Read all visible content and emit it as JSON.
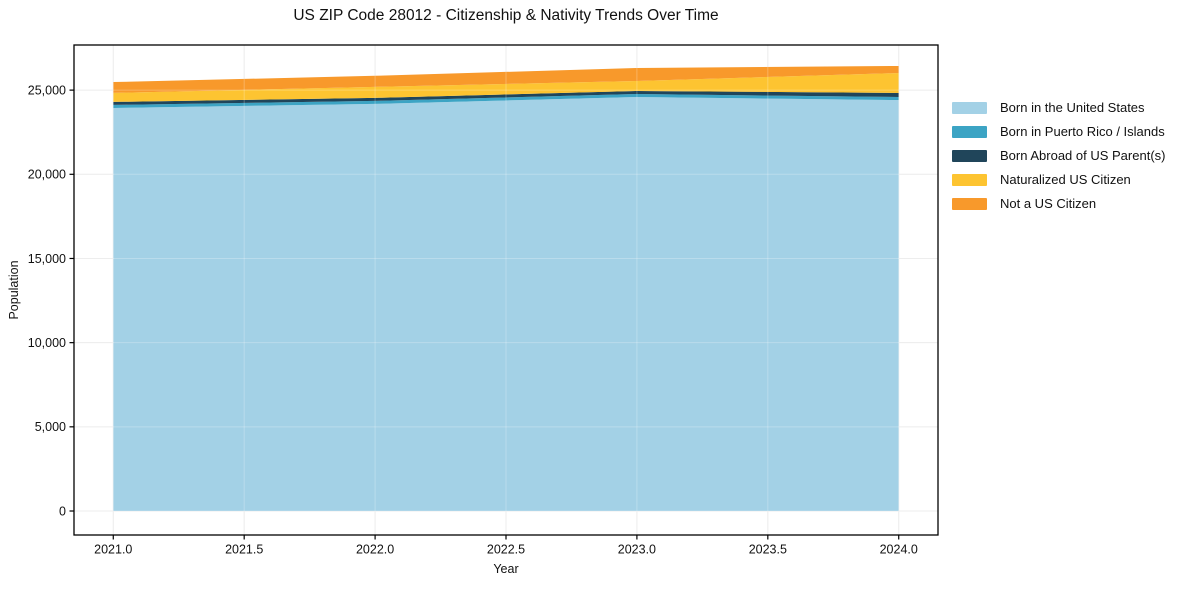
{
  "figure": {
    "background": "#ffffff",
    "text_color": "#111111"
  },
  "chart_data": {
    "type": "area",
    "stacked": true,
    "title": "US ZIP Code 28012 - Citizenship & Nativity Trends Over Time",
    "xlabel": "Year",
    "ylabel": "Population",
    "x": [
      2021,
      2022,
      2023,
      2024
    ],
    "series": [
      {
        "name": "Born in the United States",
        "color": "#a3d1e6",
        "values": [
          23940,
          24180,
          24590,
          24410
        ]
      },
      {
        "name": "Born in Puerto Rico / Islands",
        "color": "#3ca4c4",
        "values": [
          180,
          180,
          180,
          180
        ]
      },
      {
        "name": "Born Abroad of US Parent(s)",
        "color": "#20455a",
        "values": [
          180,
          180,
          180,
          240
        ]
      },
      {
        "name": "Naturalized US Citizen",
        "color": "#fdc431",
        "values": [
          535,
          655,
          595,
          1185
        ]
      },
      {
        "name": "Not a US Citizen",
        "color": "#f8992b",
        "values": [
          645,
          655,
          770,
          420
        ]
      }
    ],
    "totals": [
      25480,
      25850,
      26315,
      26435
    ],
    "xlim": [
      2020.85,
      2024.15
    ],
    "ylim": [
      -1425,
      27680
    ],
    "xticks": {
      "values": [
        2021.0,
        2021.5,
        2022.0,
        2022.5,
        2023.0,
        2023.5,
        2024.0
      ],
      "labels": [
        "2021.0",
        "2021.5",
        "2022.0",
        "2022.5",
        "2023.0",
        "2023.5",
        "2024.0"
      ]
    },
    "yticks": {
      "values": [
        0,
        5000,
        10000,
        15000,
        20000,
        25000
      ],
      "labels": [
        "0",
        "5,000",
        "10,000",
        "15,000",
        "20,000",
        "25,000"
      ]
    },
    "grid": true,
    "grid_color": "#e7e7e7",
    "axis_color": "#000000",
    "legend_position": "right-outside"
  }
}
